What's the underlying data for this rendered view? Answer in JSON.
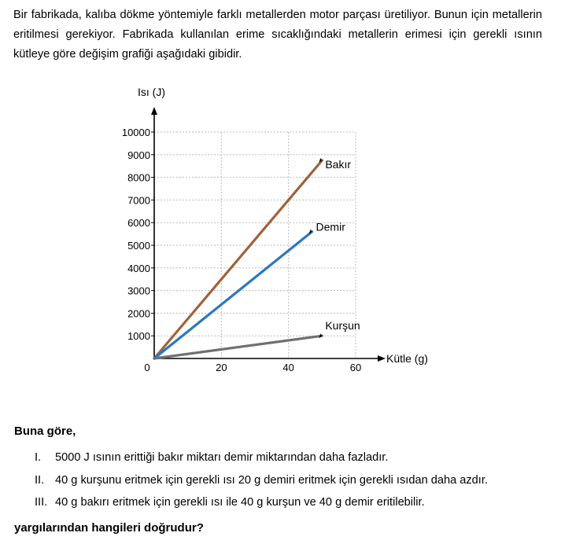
{
  "intro": "Bir fabrikada, kalıba dökme yöntemiyle farklı metallerden motor parçası üretiliyor. Bunun için metallerin eritilmesi gerekiyor. Fabrikada kullanılan erime sıcaklığındaki metallerin erimesi için gerekli ısının kütleye göre değişim grafiği aşağıdaki gibidir.",
  "chart_data": {
    "type": "line",
    "title": "",
    "xlabel": "Kütle (g)",
    "ylabel": "Isı (J)",
    "xlim": [
      0,
      60
    ],
    "ylim": [
      0,
      10000
    ],
    "x_ticks": [
      0,
      20,
      40,
      60
    ],
    "x_tick_labels": [
      "0",
      "20",
      "40",
      "60"
    ],
    "y_ticks": [
      1000,
      2000,
      3000,
      4000,
      5000,
      6000,
      7000,
      8000,
      9000,
      10000
    ],
    "y_tick_labels": [
      "1000",
      "2000",
      "3000",
      "4000",
      "5000",
      "6000",
      "7000",
      "8000",
      "9000",
      "10000"
    ],
    "grid": true,
    "series": [
      {
        "name": "Bakır",
        "color": "#a0623a",
        "points": [
          [
            0,
            0
          ],
          [
            50,
            8750
          ]
        ]
      },
      {
        "name": "Demir",
        "color": "#2a78c2",
        "points": [
          [
            0,
            0
          ],
          [
            47,
            5600
          ]
        ]
      },
      {
        "name": "Kurşun",
        "color": "#707070",
        "points": [
          [
            0,
            0
          ],
          [
            50,
            1000
          ]
        ]
      }
    ]
  },
  "question": {
    "lead": "Buna göre,",
    "statements": [
      {
        "num": "I.",
        "text": "5000 J ısının erittiği bakır miktarı demir miktarından daha fazladır."
      },
      {
        "num": "II.",
        "text": "40 g kurşunu eritmek için gerekli ısı 20 g demiri eritmek için gerekli ısıdan daha azdır."
      },
      {
        "num": "III.",
        "text": "40 g bakırı eritmek için gerekli ısı ile 40 g kurşun ve 40 g demir eritilebilir."
      }
    ],
    "prompt": "yargılarından hangileri doğrudur?"
  }
}
